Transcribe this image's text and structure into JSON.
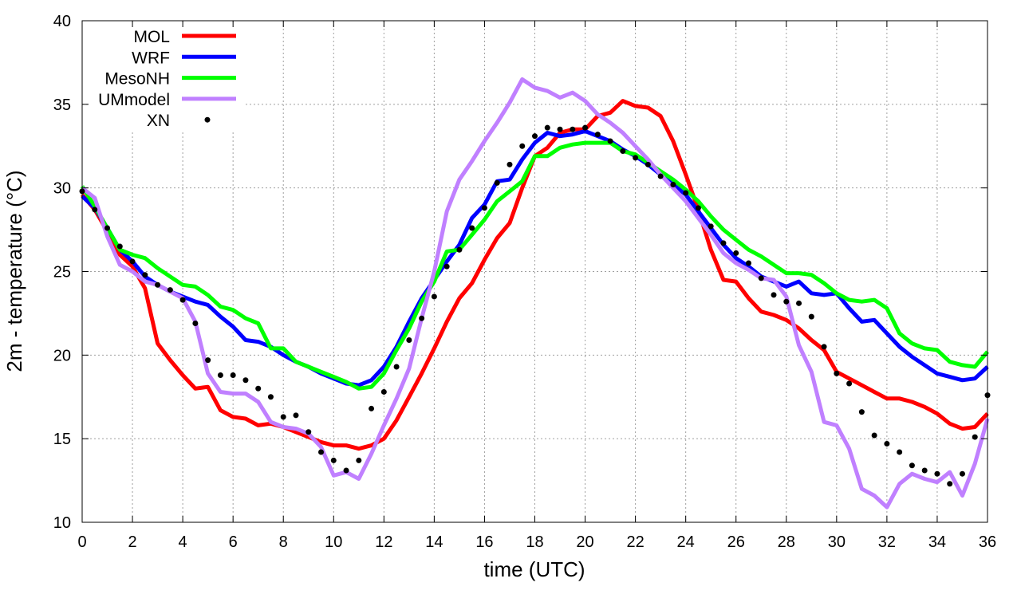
{
  "chart_data": {
    "type": "line",
    "title": "",
    "xlabel": "time (UTC)",
    "ylabel": "2m - temperature (°C)",
    "xlim": [
      0,
      36
    ],
    "ylim": [
      10,
      40
    ],
    "xticks": [
      "0",
      "2",
      "4",
      "6",
      "8",
      "10",
      "12",
      "14",
      "16",
      "18",
      "20",
      "22",
      "24",
      "26",
      "28",
      "30",
      "32",
      "34",
      "36"
    ],
    "yticks": [
      "10",
      "15",
      "20",
      "25",
      "30",
      "35",
      "40"
    ],
    "grid": true,
    "legend_position": "top-left",
    "x_step": 0.5,
    "series": [
      {
        "name": "MOL",
        "color": "#ff0000",
        "style": "line",
        "values": [
          29.6,
          28.7,
          27.4,
          26.0,
          25.3,
          24.0,
          20.7,
          19.7,
          18.8,
          18.0,
          18.1,
          16.7,
          16.3,
          16.2,
          15.8,
          15.9,
          15.7,
          15.4,
          15.1,
          14.8,
          14.6,
          14.6,
          14.4,
          14.6,
          15.0,
          16.1,
          17.5,
          18.9,
          20.4,
          22.0,
          23.4,
          24.3,
          25.7,
          27.0,
          27.9,
          30.0,
          31.9,
          32.4,
          33.3,
          33.5,
          33.5,
          34.3,
          34.5,
          35.2,
          34.9,
          34.8,
          34.3,
          32.8,
          30.8,
          28.7,
          26.3,
          24.5,
          24.4,
          23.4,
          22.6,
          22.4,
          22.1,
          21.6,
          20.9,
          20.3,
          19.0,
          18.6,
          18.2,
          17.8,
          17.4,
          17.4,
          17.2,
          16.9,
          16.5,
          15.9,
          15.6,
          15.7,
          16.5
        ]
      },
      {
        "name": "WRF",
        "color": "#0000ff",
        "style": "line",
        "values": [
          29.5,
          28.8,
          27.6,
          26.3,
          25.6,
          24.7,
          24.2,
          23.8,
          23.5,
          23.2,
          23.0,
          22.3,
          21.7,
          20.9,
          20.8,
          20.5,
          20.0,
          19.6,
          19.3,
          18.9,
          18.6,
          18.3,
          18.2,
          18.5,
          19.3,
          20.5,
          22.0,
          23.4,
          24.5,
          25.6,
          26.6,
          28.2,
          29.0,
          30.4,
          30.5,
          31.7,
          32.7,
          33.3,
          33.1,
          33.2,
          33.4,
          33.1,
          32.8,
          32.3,
          31.9,
          31.4,
          30.8,
          30.2,
          29.6,
          28.6,
          27.6,
          26.6,
          25.8,
          25.3,
          24.7,
          24.4,
          24.1,
          24.4,
          23.7,
          23.6,
          23.7,
          22.8,
          22.0,
          22.1,
          21.3,
          20.5,
          19.9,
          19.4,
          18.9,
          18.7,
          18.5,
          18.6,
          19.3
        ]
      },
      {
        "name": "MesoNH",
        "color": "#00ff00",
        "style": "line",
        "values": [
          30.1,
          28.9,
          27.6,
          26.3,
          26.0,
          25.8,
          25.2,
          24.7,
          24.2,
          24.1,
          23.6,
          22.9,
          22.7,
          22.2,
          21.9,
          20.4,
          20.4,
          19.6,
          19.3,
          19.0,
          18.7,
          18.4,
          18.0,
          18.1,
          18.9,
          20.3,
          21.6,
          23.2,
          24.4,
          26.2,
          26.3,
          27.2,
          28.1,
          29.2,
          29.8,
          30.4,
          31.9,
          31.9,
          32.4,
          32.6,
          32.7,
          32.7,
          32.7,
          32.2,
          32.0,
          31.5,
          31.0,
          30.5,
          29.9,
          29.2,
          28.3,
          27.5,
          26.9,
          26.3,
          25.9,
          25.4,
          24.9,
          24.9,
          24.8,
          24.3,
          23.7,
          23.3,
          23.2,
          23.3,
          22.8,
          21.3,
          20.7,
          20.4,
          20.3,
          19.6,
          19.4,
          19.3,
          20.2
        ]
      },
      {
        "name": "UMmodel",
        "color": "#c080ff",
        "style": "line",
        "values": [
          30.0,
          29.4,
          27.1,
          25.4,
          25.0,
          24.4,
          24.2,
          23.8,
          23.4,
          22.0,
          18.9,
          17.8,
          17.7,
          17.7,
          17.2,
          16.0,
          15.7,
          15.6,
          15.3,
          14.5,
          12.8,
          13.0,
          12.6,
          14.1,
          15.8,
          17.4,
          19.2,
          22.2,
          25.0,
          28.6,
          30.5,
          31.6,
          32.8,
          33.9,
          35.1,
          36.5,
          36.0,
          35.8,
          35.4,
          35.7,
          35.2,
          34.4,
          33.9,
          33.3,
          32.5,
          31.7,
          30.8,
          30.0,
          29.2,
          28.2,
          27.2,
          26.1,
          25.5,
          25.1,
          24.6,
          24.5,
          23.5,
          20.6,
          19.0,
          16.0,
          15.8,
          14.4,
          12.0,
          11.6,
          10.9,
          12.3,
          12.9,
          12.6,
          12.4,
          13.0,
          11.6,
          13.5,
          16.2
        ]
      },
      {
        "name": "XN",
        "color": "#000000",
        "style": "points",
        "values": [
          29.8,
          28.7,
          27.6,
          26.5,
          25.6,
          24.8,
          24.2,
          23.9,
          23.3,
          21.9,
          19.7,
          18.8,
          18.8,
          18.5,
          18.0,
          17.5,
          16.3,
          16.4,
          15.4,
          14.2,
          13.7,
          13.1,
          13.7,
          16.8,
          17.8,
          19.3,
          20.9,
          22.2,
          23.5,
          25.3,
          26.3,
          27.6,
          28.8,
          30.3,
          31.4,
          32.5,
          33.1,
          33.6,
          33.5,
          33.5,
          33.6,
          33.2,
          32.8,
          32.2,
          31.8,
          31.4,
          30.7,
          30.2,
          29.7,
          28.8,
          27.7,
          26.7,
          26.1,
          25.5,
          24.6,
          23.6,
          23.2,
          23.1,
          22.3,
          20.5,
          18.9,
          18.3,
          16.6,
          15.2,
          14.7,
          14.2,
          13.4,
          13.1,
          12.9,
          12.3,
          12.9,
          15.1,
          17.6
        ]
      }
    ]
  }
}
